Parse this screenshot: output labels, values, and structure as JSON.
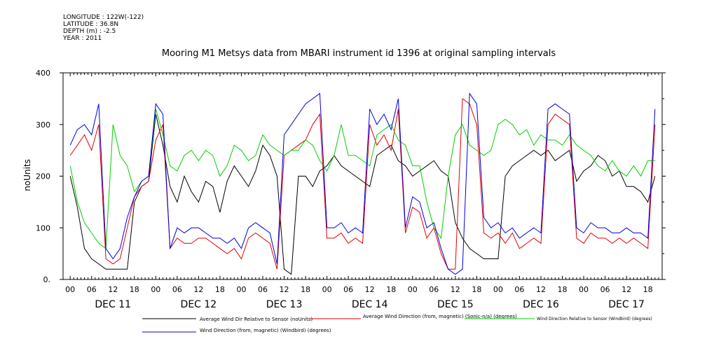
{
  "meta": {
    "longitude": "LONGITUDE : 122W(-122)",
    "latitude": "LATITUDE : 36.8N",
    "depth": "DEPTH (m) : -2.5",
    "year": "YEAR : 2011"
  },
  "chart_data": {
    "type": "line",
    "title": "Mooring M1 Metsys data from MBARI instrument id 1396 at original sampling intervals",
    "ylabel": "noUnits",
    "xlabel": "",
    "ylim": [
      0,
      400
    ],
    "yticks": [
      0,
      100,
      200,
      300,
      400
    ],
    "ytick_labels": [
      "0.",
      "100",
      "200",
      "300",
      "400"
    ],
    "x_unit": "hours since DEC 11 00:00",
    "xlim": [
      -2,
      166
    ],
    "hour_tick_labels": [
      "00",
      "06",
      "12",
      "18",
      "00",
      "06",
      "12",
      "18",
      "00",
      "06",
      "12",
      "18",
      "00",
      "06",
      "12",
      "18",
      "00",
      "06",
      "12",
      "18",
      "00",
      "06",
      "12",
      "18",
      "00",
      "06",
      "12",
      "18"
    ],
    "day_labels": [
      "DEC 11",
      "DEC 12",
      "DEC 13",
      "DEC 14",
      "DEC 15",
      "DEC 16",
      "DEC 17"
    ],
    "grid": false,
    "legend_position": "bottom",
    "series": [
      {
        "name": "Average Wind Dir Relative to Sensor (noUnits)",
        "color": "#000000",
        "x": [
          0,
          2,
          4,
          6,
          8,
          10,
          12,
          14,
          16,
          18,
          20,
          22,
          24,
          26,
          28,
          30,
          32,
          34,
          36,
          38,
          40,
          42,
          44,
          46,
          48,
          50,
          52,
          54,
          56,
          58,
          60,
          62,
          64,
          66,
          68,
          70,
          72,
          74,
          76,
          78,
          80,
          82,
          84,
          86,
          88,
          90,
          92,
          94,
          96,
          98,
          100,
          102,
          104,
          106,
          108,
          110,
          112,
          114,
          116,
          118,
          120,
          122,
          124,
          126,
          128,
          130,
          132,
          134,
          136,
          138,
          140,
          142,
          144,
          146,
          148,
          150,
          152,
          154,
          156,
          158,
          160,
          162,
          164
        ],
        "y": [
          200,
          140,
          60,
          40,
          30,
          20,
          20,
          20,
          20,
          150,
          180,
          190,
          320,
          260,
          180,
          150,
          200,
          170,
          150,
          190,
          180,
          130,
          190,
          220,
          200,
          180,
          210,
          260,
          240,
          200,
          20,
          10,
          200,
          200,
          180,
          210,
          220,
          240,
          220,
          210,
          200,
          190,
          180,
          240,
          250,
          260,
          230,
          220,
          200,
          210,
          220,
          230,
          210,
          200,
          110,
          80,
          60,
          50,
          40,
          40,
          40,
          200,
          220,
          230,
          240,
          250,
          240,
          250,
          230,
          240,
          250,
          190,
          210,
          220,
          240,
          230,
          200,
          210,
          180,
          180,
          170,
          150,
          200
        ]
      },
      {
        "name": "Average Wind Direction (from, magnetic) (Sonic-n/a) (degrees)",
        "color": "#e00000",
        "x": [
          0,
          2,
          4,
          6,
          8,
          10,
          12,
          14,
          16,
          18,
          20,
          22,
          24,
          26,
          28,
          30,
          32,
          34,
          36,
          38,
          40,
          42,
          44,
          46,
          48,
          50,
          52,
          54,
          56,
          58,
          60,
          62,
          64,
          66,
          68,
          70,
          72,
          74,
          76,
          78,
          80,
          82,
          84,
          86,
          88,
          90,
          92,
          94,
          96,
          98,
          100,
          102,
          104,
          106,
          108,
          110,
          112,
          114,
          116,
          118,
          120,
          122,
          124,
          126,
          128,
          130,
          132,
          134,
          136,
          138,
          140,
          142,
          144,
          146,
          148,
          150,
          152,
          154,
          156,
          158,
          160,
          162,
          164
        ],
        "y": [
          240,
          260,
          280,
          250,
          300,
          40,
          30,
          40,
          100,
          160,
          180,
          190,
          270,
          300,
          60,
          80,
          70,
          70,
          80,
          80,
          70,
          60,
          50,
          60,
          40,
          80,
          90,
          80,
          70,
          20,
          240,
          250,
          260,
          270,
          300,
          320,
          80,
          80,
          90,
          70,
          80,
          70,
          300,
          260,
          280,
          250,
          330,
          90,
          140,
          130,
          80,
          100,
          50,
          20,
          20,
          350,
          340,
          300,
          90,
          80,
          90,
          70,
          90,
          60,
          70,
          80,
          70,
          300,
          320,
          310,
          300,
          80,
          70,
          90,
          80,
          80,
          70,
          80,
          70,
          80,
          70,
          60,
          300
        ]
      },
      {
        "name": "Wind Direction Relative to Sensor (Windbird) (degrees)",
        "color": "#00d000",
        "x": [
          0,
          2,
          4,
          6,
          8,
          10,
          12,
          14,
          16,
          18,
          20,
          22,
          24,
          26,
          28,
          30,
          32,
          34,
          36,
          38,
          40,
          42,
          44,
          46,
          48,
          50,
          52,
          54,
          56,
          58,
          60,
          62,
          64,
          66,
          68,
          70,
          72,
          74,
          76,
          78,
          80,
          82,
          84,
          86,
          88,
          90,
          92,
          94,
          96,
          98,
          100,
          102,
          104,
          106,
          108,
          110,
          112,
          114,
          116,
          118,
          120,
          122,
          124,
          126,
          128,
          130,
          132,
          134,
          136,
          138,
          140,
          142,
          144,
          146,
          148,
          150,
          152,
          154,
          156,
          158,
          160,
          162,
          164
        ],
        "y": [
          220,
          150,
          110,
          90,
          70,
          60,
          300,
          240,
          220,
          170,
          190,
          200,
          330,
          280,
          220,
          210,
          240,
          250,
          230,
          250,
          240,
          200,
          220,
          260,
          250,
          230,
          240,
          280,
          260,
          250,
          240,
          250,
          250,
          270,
          260,
          230,
          210,
          240,
          300,
          240,
          240,
          230,
          220,
          280,
          290,
          300,
          270,
          260,
          220,
          220,
          150,
          100,
          80,
          200,
          280,
          300,
          260,
          250,
          240,
          250,
          300,
          310,
          300,
          280,
          290,
          260,
          280,
          270,
          270,
          260,
          280,
          260,
          250,
          240,
          220,
          210,
          230,
          210,
          200,
          220,
          200,
          230,
          230
        ]
      },
      {
        "name": "Wind Direction (from, magnetic) (Windbird) (degrees)",
        "color": "#0000e0",
        "x": [
          0,
          2,
          4,
          6,
          8,
          10,
          12,
          14,
          16,
          18,
          20,
          22,
          24,
          26,
          28,
          30,
          32,
          34,
          36,
          38,
          40,
          42,
          44,
          46,
          48,
          50,
          52,
          54,
          56,
          58,
          60,
          62,
          64,
          66,
          68,
          70,
          72,
          74,
          76,
          78,
          80,
          82,
          84,
          86,
          88,
          90,
          92,
          94,
          96,
          98,
          100,
          102,
          104,
          106,
          108,
          110,
          112,
          114,
          116,
          118,
          120,
          122,
          124,
          126,
          128,
          130,
          132,
          134,
          136,
          138,
          140,
          142,
          144,
          146,
          148,
          150,
          152,
          154,
          156,
          158,
          160,
          162,
          164
        ],
        "y": [
          260,
          290,
          300,
          280,
          340,
          60,
          40,
          60,
          120,
          160,
          190,
          200,
          340,
          320,
          60,
          100,
          90,
          100,
          100,
          90,
          80,
          80,
          70,
          80,
          60,
          100,
          110,
          100,
          90,
          30,
          280,
          300,
          320,
          340,
          350,
          360,
          100,
          100,
          110,
          90,
          100,
          90,
          330,
          300,
          320,
          290,
          350,
          100,
          160,
          150,
          100,
          110,
          60,
          20,
          10,
          20,
          360,
          340,
          120,
          100,
          110,
          90,
          100,
          80,
          90,
          100,
          90,
          330,
          340,
          330,
          320,
          100,
          90,
          110,
          100,
          100,
          90,
          90,
          100,
          90,
          90,
          80,
          330
        ]
      }
    ]
  }
}
